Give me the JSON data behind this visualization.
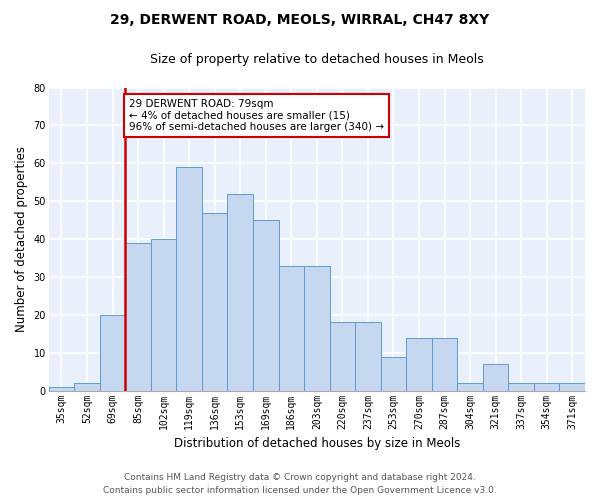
{
  "title1": "29, DERWENT ROAD, MEOLS, WIRRAL, CH47 8XY",
  "title2": "Size of property relative to detached houses in Meols",
  "xlabel": "Distribution of detached houses by size in Meols",
  "ylabel": "Number of detached properties",
  "categories": [
    "35sqm",
    "52sqm",
    "69sqm",
    "85sqm",
    "102sqm",
    "119sqm",
    "136sqm",
    "153sqm",
    "169sqm",
    "186sqm",
    "203sqm",
    "220sqm",
    "237sqm",
    "253sqm",
    "270sqm",
    "287sqm",
    "304sqm",
    "321sqm",
    "337sqm",
    "354sqm",
    "371sqm"
  ],
  "values": [
    1,
    2,
    20,
    39,
    40,
    59,
    47,
    52,
    45,
    33,
    33,
    18,
    18,
    9,
    14,
    14,
    2,
    7,
    2,
    2,
    2
  ],
  "bar_color": "#c5d8f0",
  "bar_edge_color": "#5b9bd5",
  "vline_x_index": 2,
  "vline_color": "#cc0000",
  "annotation_text": "29 DERWENT ROAD: 79sqm\n← 4% of detached houses are smaller (15)\n96% of semi-detached houses are larger (340) →",
  "annotation_box_color": "#cc0000",
  "ylim": [
    0,
    80
  ],
  "yticks": [
    0,
    10,
    20,
    30,
    40,
    50,
    60,
    70,
    80
  ],
  "footer1": "Contains HM Land Registry data © Crown copyright and database right 2024.",
  "footer2": "Contains public sector information licensed under the Open Government Licence v3.0.",
  "bg_color": "#eaf0fb",
  "grid_color": "#ffffff",
  "title1_fontsize": 10,
  "title2_fontsize": 9,
  "tick_fontsize": 7,
  "ylabel_fontsize": 8.5,
  "xlabel_fontsize": 8.5,
  "footer_fontsize": 6.5
}
